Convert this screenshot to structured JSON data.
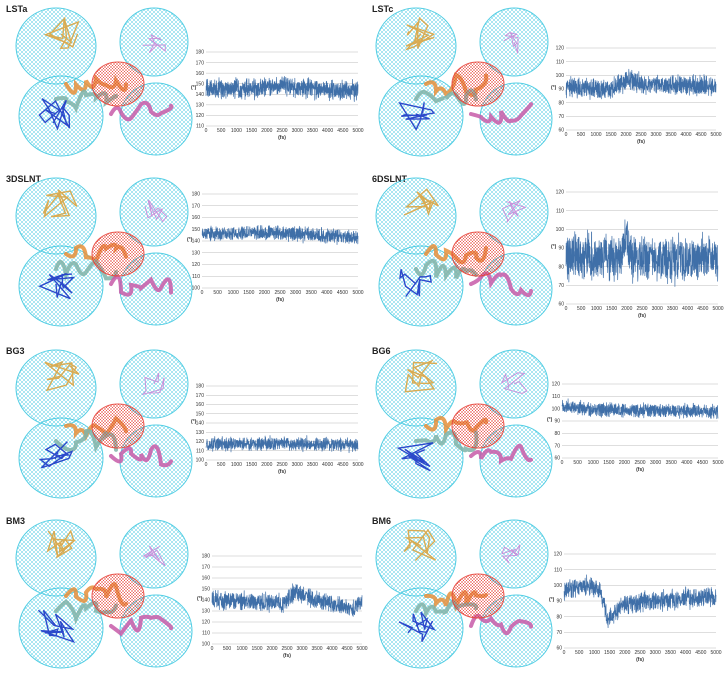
{
  "panels": [
    {
      "id": "lsta",
      "title": "LSTa"
    },
    {
      "id": "lstc",
      "title": "LSTc"
    },
    {
      "id": "3dslnt",
      "title": "3DSLNT"
    },
    {
      "id": "6dslnt",
      "title": "6DSLNT"
    },
    {
      "id": "bg3",
      "title": "BG3"
    },
    {
      "id": "bg6",
      "title": "BG6"
    },
    {
      "id": "bm3",
      "title": "BM3"
    },
    {
      "id": "bm6",
      "title": "BM6"
    }
  ],
  "colors": {
    "series": "#3f6fa8",
    "grid": "#bdbdbd",
    "mesh": "#36c6e0",
    "ligand_orange": "#d9a84a",
    "ligand_blue": "#2340c8",
    "ribbon_red": "#e8443a",
    "ribbon_pink": "#c75aa8",
    "ribbon_orange": "#e58f3a",
    "ribbon_teal": "#7fb3a8"
  },
  "chart_data": [
    {
      "panel": "LSTa",
      "type": "line",
      "xlabel": "(fs)",
      "ylabel": "(°)",
      "x_ticks": [
        0,
        500,
        1000,
        1500,
        2000,
        2500,
        3000,
        3500,
        4000,
        4500,
        5000
      ],
      "y_ticks": [
        110,
        120,
        130,
        140,
        150,
        160,
        170,
        180
      ],
      "xlim": [
        0,
        5000
      ],
      "ylim": [
        110,
        180
      ],
      "series": [
        {
          "mean": 145,
          "amplitude": 10,
          "noise": 7,
          "segments": [
            {
              "x": 0,
              "y": 145
            },
            {
              "x": 1800,
              "y": 146
            },
            {
              "x": 2600,
              "y": 149
            },
            {
              "x": 3500,
              "y": 145
            },
            {
              "x": 5000,
              "y": 144
            }
          ]
        }
      ]
    },
    {
      "panel": "LSTc",
      "type": "line",
      "xlabel": "(fs)",
      "ylabel": "(°)",
      "x_ticks": [
        0,
        500,
        1000,
        1500,
        2000,
        2500,
        3000,
        3500,
        4000,
        4500,
        5000
      ],
      "y_ticks": [
        60,
        70,
        80,
        90,
        100,
        110,
        120
      ],
      "xlim": [
        0,
        5000
      ],
      "ylim": [
        60,
        120
      ],
      "series": [
        {
          "mean": 91,
          "amplitude": 8,
          "noise": 6,
          "segments": [
            {
              "x": 0,
              "y": 91
            },
            {
              "x": 1500,
              "y": 90
            },
            {
              "x": 2100,
              "y": 97
            },
            {
              "x": 2600,
              "y": 93
            },
            {
              "x": 5000,
              "y": 92
            }
          ]
        }
      ]
    },
    {
      "panel": "3DSLNT",
      "type": "line",
      "xlabel": "(fs)",
      "ylabel": "(°)",
      "x_ticks": [
        0,
        500,
        1000,
        1500,
        2000,
        2500,
        3000,
        3500,
        4000,
        4500,
        5000
      ],
      "y_ticks": [
        100,
        110,
        120,
        130,
        140,
        150,
        160,
        170,
        180
      ],
      "xlim": [
        0,
        5000
      ],
      "ylim": [
        100,
        180
      ],
      "series": [
        {
          "mean": 146,
          "amplitude": 7,
          "noise": 5,
          "segments": [
            {
              "x": 0,
              "y": 146
            },
            {
              "x": 2500,
              "y": 147
            },
            {
              "x": 5000,
              "y": 143
            }
          ]
        }
      ]
    },
    {
      "panel": "6DSLNT",
      "type": "line",
      "xlabel": "(fs)",
      "ylabel": "(°)",
      "x_ticks": [
        0,
        500,
        1000,
        1500,
        2000,
        2500,
        3000,
        3500,
        4000,
        4500,
        5000
      ],
      "y_ticks": [
        60,
        70,
        80,
        90,
        100,
        110,
        120
      ],
      "xlim": [
        0,
        5000
      ],
      "ylim": [
        60,
        120
      ],
      "series": [
        {
          "mean": 84,
          "amplitude": 13,
          "noise": 9,
          "segments": [
            {
              "x": 0,
              "y": 86
            },
            {
              "x": 1800,
              "y": 85
            },
            {
              "x": 1950,
              "y": 97
            },
            {
              "x": 2200,
              "y": 84
            },
            {
              "x": 5000,
              "y": 84
            }
          ]
        }
      ]
    },
    {
      "panel": "BG3",
      "type": "line",
      "xlabel": "(fs)",
      "ylabel": "(°)",
      "x_ticks": [
        0,
        500,
        1000,
        1500,
        2000,
        2500,
        3000,
        3500,
        4000,
        4500,
        5000
      ],
      "y_ticks": [
        100,
        110,
        120,
        130,
        140,
        150,
        160,
        170,
        180
      ],
      "xlim": [
        0,
        5000
      ],
      "ylim": [
        100,
        180
      ],
      "series": [
        {
          "mean": 117,
          "amplitude": 8,
          "noise": 5,
          "segments": [
            {
              "x": 0,
              "y": 117
            },
            {
              "x": 2500,
              "y": 118
            },
            {
              "x": 5000,
              "y": 116
            }
          ]
        }
      ]
    },
    {
      "panel": "BG6",
      "type": "line",
      "xlabel": "(fs)",
      "ylabel": "(°)",
      "x_ticks": [
        0,
        500,
        1000,
        1500,
        2000,
        2500,
        3000,
        3500,
        4000,
        4500,
        5000
      ],
      "y_ticks": [
        60,
        70,
        80,
        90,
        100,
        110,
        120
      ],
      "xlim": [
        0,
        5000
      ],
      "ylim": [
        60,
        120
      ],
      "series": [
        {
          "mean": 99,
          "amplitude": 6,
          "noise": 4,
          "segments": [
            {
              "x": 0,
              "y": 102
            },
            {
              "x": 1000,
              "y": 99
            },
            {
              "x": 5000,
              "y": 98
            }
          ]
        }
      ]
    },
    {
      "panel": "BM3",
      "type": "line",
      "xlabel": "(fs)",
      "ylabel": "(°)",
      "x_ticks": [
        0,
        500,
        1000,
        1500,
        2000,
        2500,
        3000,
        3500,
        4000,
        4500,
        5000
      ],
      "y_ticks": [
        100,
        110,
        120,
        130,
        140,
        150,
        160,
        170,
        180
      ],
      "xlim": [
        0,
        5000
      ],
      "ylim": [
        100,
        180
      ],
      "series": [
        {
          "mean": 140,
          "amplitude": 9,
          "noise": 6,
          "segments": [
            {
              "x": 0,
              "y": 140
            },
            {
              "x": 2400,
              "y": 137
            },
            {
              "x": 2800,
              "y": 148
            },
            {
              "x": 3300,
              "y": 141
            },
            {
              "x": 4700,
              "y": 132
            },
            {
              "x": 5000,
              "y": 140
            }
          ]
        }
      ]
    },
    {
      "panel": "BM6",
      "type": "line",
      "xlabel": "(fs)",
      "ylabel": "(°)",
      "x_ticks": [
        0,
        500,
        1000,
        1500,
        2000,
        2500,
        3000,
        3500,
        4000,
        4500,
        5000
      ],
      "y_ticks": [
        60,
        70,
        80,
        90,
        100,
        110,
        120
      ],
      "xlim": [
        0,
        5000
      ],
      "ylim": [
        60,
        120
      ],
      "series": [
        {
          "mean": 95,
          "amplitude": 7,
          "noise": 5,
          "segments": [
            {
              "x": 0,
              "y": 97
            },
            {
              "x": 900,
              "y": 100
            },
            {
              "x": 1200,
              "y": 95
            },
            {
              "x": 1450,
              "y": 78
            },
            {
              "x": 2000,
              "y": 88
            },
            {
              "x": 3000,
              "y": 90
            },
            {
              "x": 5000,
              "y": 93
            }
          ]
        }
      ]
    }
  ]
}
